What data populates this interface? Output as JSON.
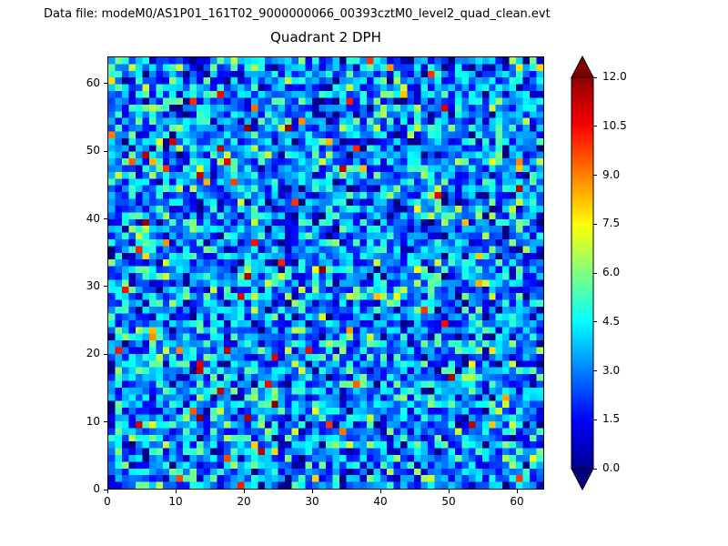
{
  "header": {
    "datafile_label": "Data file: modeM0/AS1P01_161T02_9000000066_00393cztM0_level2_quad_clean.evt"
  },
  "chart_data": {
    "type": "heatmap",
    "title": "Quadrant 2 DPH",
    "xlabel": "",
    "ylabel": "",
    "x_range": [
      0,
      64
    ],
    "y_range": [
      0,
      64
    ],
    "x_ticks": [
      0,
      10,
      20,
      30,
      40,
      50,
      60
    ],
    "y_ticks": [
      0,
      10,
      20,
      30,
      40,
      50,
      60
    ],
    "grid": false,
    "colormap": "jet",
    "colorbar": {
      "min": 0.0,
      "max": 12.0,
      "tick_labels": [
        "12.0",
        "10.5",
        "9.0",
        "7.5",
        "6.0",
        "4.5",
        "3.0",
        "1.5",
        "0.0"
      ],
      "extend": "both",
      "over_color": "#800000",
      "under_color": "#000080",
      "position": "right"
    },
    "matrix": {
      "rows": 64,
      "cols": 64,
      "seed": 393,
      "base_mean": 3.1,
      "base_sd": 1.7,
      "base_clip_max": 6.9,
      "outlier_probability": 0.025,
      "outlier_min": 7.0,
      "outlier_max": 12.0,
      "clip_min": 0.0,
      "clip_max": 12.0,
      "description": "64x64 detector plane histogram counts; mostly 0-7 (blues/cyans/greens) with sparse hot pixels up to 12 (orange/red)"
    }
  }
}
